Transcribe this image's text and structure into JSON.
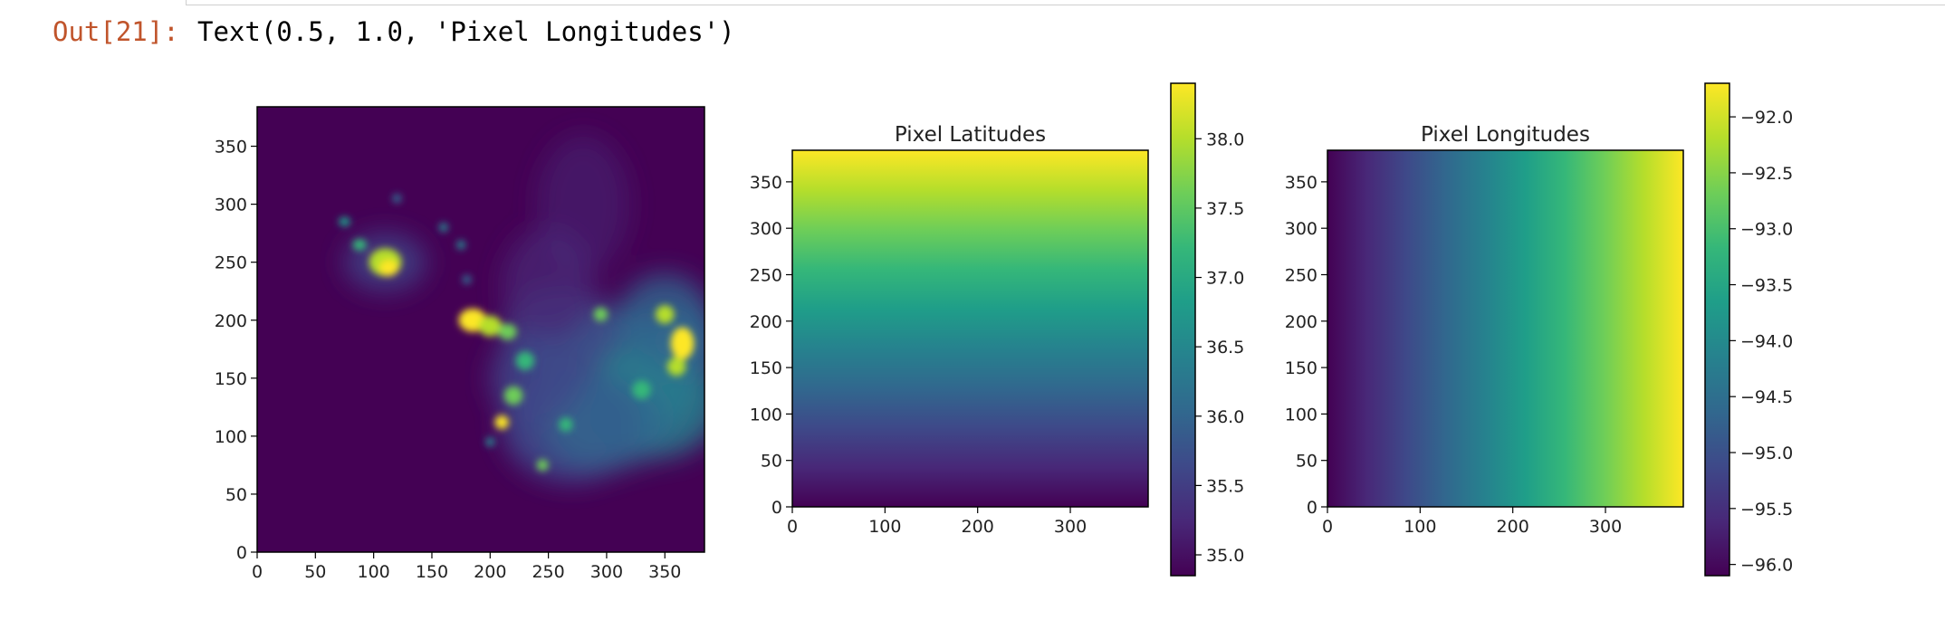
{
  "cell": {
    "prompt": "Out[21]:",
    "output_text": "Text(0.5, 1.0, 'Pixel Longitudes')"
  },
  "colors": {
    "prompt": "#c0542b",
    "colormap": "viridis"
  },
  "chart_data": [
    {
      "type": "heatmap",
      "title": "",
      "colormap": "viridis",
      "xlim": [
        0,
        384
      ],
      "ylim": [
        0,
        384
      ],
      "xticks": [
        0,
        50,
        100,
        150,
        200,
        250,
        300,
        350
      ],
      "yticks": [
        0,
        50,
        100,
        150,
        200,
        250,
        300,
        350
      ],
      "xticklabels": [
        "0",
        "50",
        "100",
        "150",
        "200",
        "250",
        "300",
        "350"
      ],
      "yticklabels": [
        "0",
        "50",
        "100",
        "150",
        "200",
        "250",
        "300",
        "350"
      ],
      "origin": "lower",
      "colorbar": false
    },
    {
      "type": "heatmap",
      "title": "Pixel Latitudes",
      "colormap": "viridis",
      "xlim": [
        0,
        384
      ],
      "ylim": [
        0,
        384
      ],
      "xticks": [
        0,
        100,
        200,
        300
      ],
      "yticks": [
        0,
        50,
        100,
        150,
        200,
        250,
        300,
        350
      ],
      "xticklabels": [
        "0",
        "100",
        "200",
        "300"
      ],
      "yticklabels": [
        "0",
        "50",
        "100",
        "150",
        "200",
        "250",
        "300",
        "350"
      ],
      "gradient": "vertical",
      "value_range": [
        34.85,
        38.4
      ],
      "colorbar": true,
      "colorbar_ticks": [
        35.0,
        35.5,
        36.0,
        36.5,
        37.0,
        37.5,
        38.0
      ],
      "colorbar_ticklabels": [
        "35.0",
        "35.5",
        "36.0",
        "36.5",
        "37.0",
        "37.5",
        "38.0"
      ]
    },
    {
      "type": "heatmap",
      "title": "Pixel Longitudes",
      "colormap": "viridis",
      "xlim": [
        0,
        384
      ],
      "ylim": [
        0,
        384
      ],
      "xticks": [
        0,
        100,
        200,
        300
      ],
      "yticks": [
        0,
        50,
        100,
        150,
        200,
        250,
        300,
        350
      ],
      "xticklabels": [
        "0",
        "100",
        "200",
        "300"
      ],
      "yticklabels": [
        "0",
        "50",
        "100",
        "150",
        "200",
        "250",
        "300",
        "350"
      ],
      "gradient": "horizontal",
      "value_range": [
        -96.1,
        -91.7
      ],
      "colorbar": true,
      "colorbar_ticks": [
        -96.0,
        -95.5,
        -95.0,
        -94.5,
        -94.0,
        -93.5,
        -93.0,
        -92.5,
        -92.0
      ],
      "colorbar_ticklabels": [
        "−96.0",
        "−95.5",
        "−95.0",
        "−94.5",
        "−94.0",
        "−93.5",
        "−93.0",
        "−92.5",
        "−92.0"
      ]
    }
  ]
}
